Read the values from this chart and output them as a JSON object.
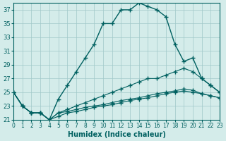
{
  "xlabel": "Humidex (Indice chaleur)",
  "ylabel": "",
  "background_color": "#d4ecea",
  "grid_color": "#a0c8c8",
  "line_color": "#006060",
  "xlim": [
    0,
    23
  ],
  "ylim": [
    21,
    38
  ],
  "yticks": [
    21,
    23,
    25,
    27,
    29,
    31,
    33,
    35,
    37
  ],
  "xticks": [
    0,
    1,
    2,
    3,
    4,
    5,
    6,
    7,
    8,
    9,
    10,
    11,
    12,
    13,
    14,
    15,
    16,
    17,
    18,
    19,
    20,
    21,
    22,
    23
  ],
  "curve1_x": [
    0,
    1,
    2,
    3,
    4,
    5,
    6,
    7,
    8,
    9,
    10,
    11,
    12,
    13,
    14,
    15,
    16,
    17,
    18,
    19,
    20,
    21,
    22,
    23
  ],
  "curve1_y": [
    25,
    23,
    22,
    22,
    21,
    24,
    26,
    28,
    30,
    32,
    35,
    35,
    37,
    37,
    38,
    37.5,
    37,
    36,
    32,
    29.5,
    30,
    27,
    26,
    25
  ],
  "curve2_x": [
    0,
    1,
    2,
    3,
    4,
    5,
    6,
    7,
    8,
    9,
    10,
    11,
    12,
    13,
    14,
    15,
    16,
    17,
    18,
    19,
    20,
    21,
    22,
    23
  ],
  "curve2_y": [
    25,
    23,
    22,
    22,
    21,
    22,
    22.5,
    23,
    23.5,
    24,
    24.5,
    25,
    25.5,
    26,
    26.5,
    27,
    27,
    27.5,
    28,
    28.5,
    28,
    27,
    26,
    25
  ],
  "curve3_x": [
    0,
    1,
    2,
    3,
    4,
    5,
    6,
    7,
    8,
    9,
    10,
    11,
    12,
    13,
    14,
    15,
    16,
    17,
    18,
    19,
    20,
    21,
    22,
    23
  ],
  "curve3_y": [
    25,
    23,
    22,
    22,
    21,
    22,
    22.2,
    22.5,
    22.8,
    23,
    23.2,
    23.5,
    23.8,
    24,
    24.2,
    24.5,
    24.8,
    25,
    25.2,
    25.5,
    25.3,
    24.8,
    24.5,
    24.2
  ],
  "curve4_x": [
    0,
    1,
    2,
    3,
    4,
    5,
    6,
    7,
    8,
    9,
    10,
    11,
    12,
    13,
    14,
    15,
    16,
    17,
    18,
    19,
    20,
    21,
    22,
    23
  ],
  "curve4_y": [
    25,
    23,
    22,
    22,
    21,
    21.5,
    22,
    22.2,
    22.5,
    22.8,
    23,
    23.2,
    23.5,
    23.8,
    24,
    24.2,
    24.5,
    24.8,
    25,
    25.2,
    25.0,
    24.8,
    24.5,
    24.2
  ]
}
